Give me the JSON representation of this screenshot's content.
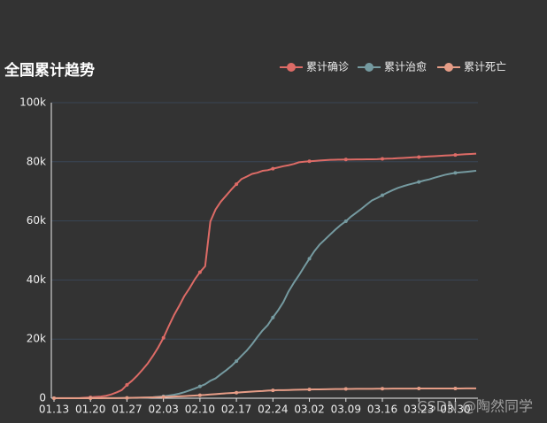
{
  "chart_data": {
    "type": "line",
    "title": "全国累计趋势",
    "watermark": "CSDN @陶然同学",
    "categories": [
      "01.13",
      null,
      null,
      null,
      null,
      null,
      null,
      "01.20",
      null,
      null,
      null,
      null,
      null,
      null,
      "01.27",
      null,
      null,
      null,
      null,
      null,
      null,
      "02.03",
      null,
      null,
      null,
      null,
      null,
      null,
      "02.10",
      null,
      null,
      null,
      null,
      null,
      null,
      "02.17",
      null,
      null,
      null,
      null,
      null,
      null,
      "02.24",
      null,
      null,
      null,
      null,
      null,
      null,
      "03.02",
      null,
      null,
      null,
      null,
      null,
      null,
      "03.09",
      null,
      null,
      null,
      null,
      null,
      null,
      "03.16",
      null,
      null,
      null,
      null,
      null,
      null,
      "03.23",
      null,
      null,
      null,
      null,
      null,
      null,
      "03.30",
      null,
      null,
      null,
      null
    ],
    "series": [
      {
        "name": "累计确诊",
        "color": "#dd6b66",
        "values": [
          41,
          41,
          41,
          41,
          45,
          62,
          198,
          291,
          440,
          571,
          830,
          1287,
          1975,
          2744,
          4515,
          5974,
          7711,
          9692,
          11791,
          14380,
          17205,
          20438,
          24324,
          28018,
          31161,
          34546,
          37198,
          40171,
          42638,
          44653,
          59804,
          63851,
          66492,
          68500,
          70548,
          72436,
          74185,
          75002,
          75891,
          76288,
          76936,
          77150,
          77658,
          78064,
          78497,
          78824,
          79251,
          79824,
          80026,
          80151,
          80270,
          80409,
          80552,
          80651,
          80695,
          80735,
          80754,
          80778,
          80793,
          80813,
          80824,
          80844,
          80860,
          81000,
          81050,
          81100,
          81200,
          81300,
          81400,
          81500,
          81600,
          81700,
          81800,
          81900,
          82000,
          82100,
          82200,
          82300,
          82450,
          82550,
          82650,
          82750
        ]
      },
      {
        "name": "累计治愈",
        "color": "#759aa0",
        "values": [
          0,
          0,
          0,
          0,
          0,
          0,
          0,
          25,
          25,
          28,
          34,
          38,
          49,
          51,
          60,
          103,
          124,
          171,
          243,
          328,
          475,
          632,
          892,
          1153,
          1540,
          2050,
          2649,
          3281,
          3996,
          4740,
          5911,
          6723,
          8096,
          9419,
          10844,
          12552,
          14376,
          16155,
          18264,
          20659,
          22888,
          24734,
          27323,
          29745,
          32495,
          36117,
          39002,
          41625,
          44462,
          47204,
          49856,
          52045,
          53726,
          55404,
          57065,
          58600,
          59897,
          61475,
          62793,
          64111,
          65541,
          66911,
          67749,
          68679,
          69601,
          70420,
          71150,
          71740,
          72244,
          72703,
          73159,
          73650,
          74051,
          74600,
          75100,
          75582,
          75923,
          76225,
          76415,
          76571,
          76760,
          76964
        ]
      },
      {
        "name": "累计死亡",
        "color": "#e69d87",
        "values": [
          1,
          1,
          1,
          1,
          2,
          2,
          3,
          6,
          9,
          17,
          25,
          41,
          56,
          80,
          106,
          132,
          170,
          213,
          259,
          304,
          361,
          425,
          490,
          563,
          636,
          722,
          811,
          908,
          1016,
          1113,
          1259,
          1380,
          1523,
          1665,
          1770,
          1868,
          2004,
          2118,
          2236,
          2345,
          2442,
          2592,
          2663,
          2715,
          2744,
          2788,
          2835,
          2870,
          2912,
          2943,
          2981,
          3012,
          3042,
          3070,
          3097,
          3119,
          3136,
          3158,
          3169,
          3176,
          3189,
          3199,
          3213,
          3226,
          3237,
          3245,
          3248,
          3255,
          3261,
          3270,
          3277,
          3281,
          3287,
          3292,
          3295,
          3300,
          3304,
          3305,
          3312,
          3316,
          3322,
          3326
        ]
      }
    ],
    "ylim": [
      0,
      100000
    ],
    "yticks": [
      0,
      {
        "value": 20000,
        "label": "20k"
      },
      {
        "value": 40000,
        "label": "40k"
      },
      {
        "value": 60000,
        "label": "60k"
      },
      {
        "value": 80000,
        "label": "80k"
      },
      {
        "value": 100000,
        "label": "100k"
      }
    ],
    "grid": true,
    "legend": "top-right"
  }
}
